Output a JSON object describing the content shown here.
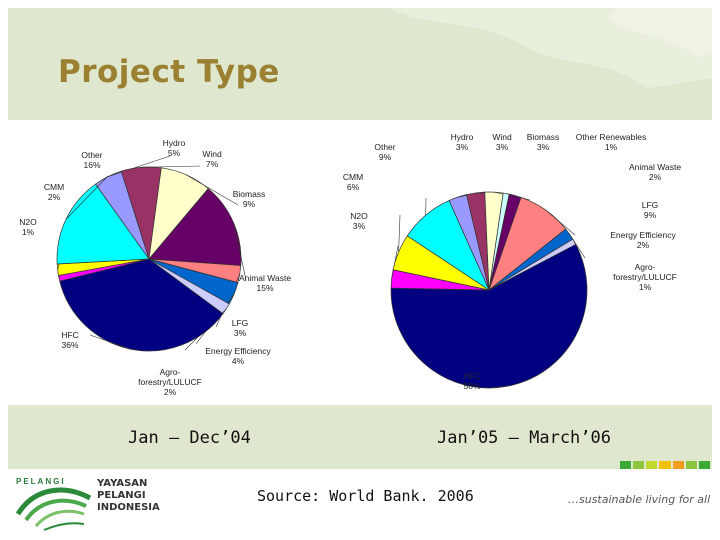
{
  "slide": {
    "title": "Project Type",
    "caption_left": "Jan – Dec’04",
    "caption_right": "Jan’05 – March’06",
    "source": "Source: World Bank. 2006",
    "tagline": "…sustainable living for all",
    "logo": {
      "brand": "PELANGI",
      "line1": "YAYASAN",
      "line2": "PELANGI",
      "line3": "INDONESIA"
    },
    "stripe_colors": [
      "#3aaa35",
      "#8cc63f",
      "#c3d82e",
      "#f2c200",
      "#f39c1f",
      "#8cc63f",
      "#3aaa35"
    ]
  },
  "chart_data": [
    {
      "type": "pie",
      "title": "Jan – Dec’04",
      "slices": [
        {
          "label": "Hydro",
          "value": 5,
          "display": "5%",
          "color": "#9999ff"
        },
        {
          "label": "Wind",
          "value": 7,
          "display": "7%",
          "color": "#993366"
        },
        {
          "label": "Biomass",
          "value": 9,
          "display": "9%",
          "color": "#ffffcc"
        },
        {
          "label": "Animal Waste",
          "value": 15,
          "display": "15%",
          "color": "#660066"
        },
        {
          "label": "LFG",
          "value": 3,
          "display": "3%",
          "color": "#ff8080"
        },
        {
          "label": "Energy Efficiency",
          "value": 4,
          "display": "4%",
          "color": "#0066cc"
        },
        {
          "label": "Agro-forestry/LULUCF",
          "value": 2,
          "display": "2%",
          "color": "#ccccff"
        },
        {
          "label": "HFC",
          "value": 36,
          "display": "36%",
          "color": "#000080"
        },
        {
          "label": "N2O",
          "value": 1,
          "display": "1%",
          "color": "#ff00ff"
        },
        {
          "label": "CMM",
          "value": 2,
          "display": "2%",
          "color": "#ffff00"
        },
        {
          "label": "Other",
          "value": 16,
          "display": "16%",
          "color": "#00ffff"
        }
      ]
    },
    {
      "type": "pie",
      "title": "Jan’05 – March’06",
      "slices": [
        {
          "label": "Hydro",
          "value": 3,
          "display": "3%",
          "color": "#9999ff"
        },
        {
          "label": "Wind",
          "value": 3,
          "display": "3%",
          "color": "#993366"
        },
        {
          "label": "Biomass",
          "value": 3,
          "display": "3%",
          "color": "#ffffcc"
        },
        {
          "label": "Other Renewables",
          "value": 1,
          "display": "1%",
          "color": "#ccffff"
        },
        {
          "label": "Animal Waste",
          "value": 2,
          "display": "2%",
          "color": "#660066"
        },
        {
          "label": "LFG",
          "value": 9,
          "display": "9%",
          "color": "#ff8080"
        },
        {
          "label": "Energy Efficiency",
          "value": 2,
          "display": "2%",
          "color": "#0066cc"
        },
        {
          "label": "Agro-forestry/LULUCF",
          "value": 1,
          "display": "1%",
          "color": "#ccccff"
        },
        {
          "label": "HFC",
          "value": 58,
          "display": "58%",
          "color": "#000080"
        },
        {
          "label": "N2O",
          "value": 3,
          "display": "3%",
          "color": "#ff00ff"
        },
        {
          "label": "CMM",
          "value": 6,
          "display": "6%",
          "color": "#ffff00"
        },
        {
          "label": "Other",
          "value": 9,
          "display": "9%",
          "color": "#00ffff"
        }
      ]
    }
  ]
}
